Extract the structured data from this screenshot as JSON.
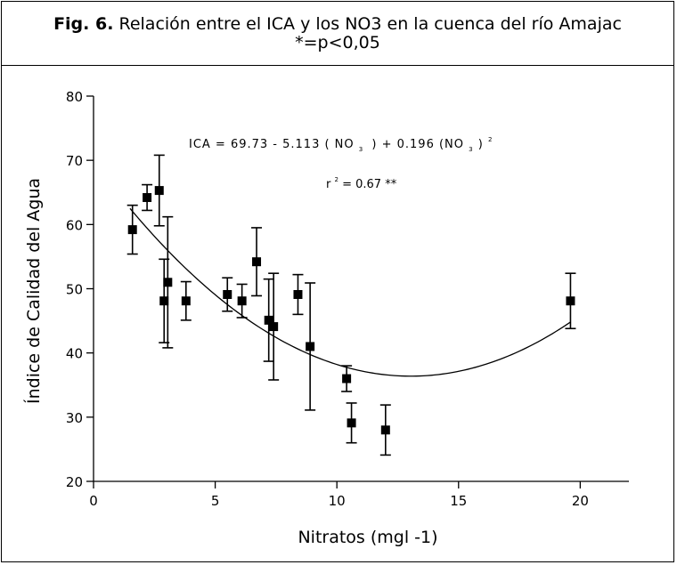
{
  "caption": {
    "fig_label": "Fig. 6.",
    "title": "Relación entre el ICA y los NO3 en la cuenca del río Amajac",
    "subtitle": "*=p<0,05"
  },
  "chart_data": {
    "type": "scatter",
    "xlabel": "Nitratos (mgl -1)",
    "ylabel": "Índice de Calidad del Agua",
    "xlim": [
      0,
      22
    ],
    "ylim": [
      20,
      80
    ],
    "x_ticks": [
      0,
      5,
      10,
      15,
      20
    ],
    "y_ticks": [
      20,
      30,
      40,
      50,
      60,
      70,
      80
    ],
    "grid": false,
    "points": [
      {
        "x": 1.6,
        "y": 59.2,
        "err": 3.8
      },
      {
        "x": 2.2,
        "y": 64.2,
        "err": 2.0
      },
      {
        "x": 2.7,
        "y": 65.3,
        "err": 5.5
      },
      {
        "x": 2.9,
        "y": 48.1,
        "err": 6.5
      },
      {
        "x": 3.05,
        "y": 51.0,
        "err": 10.2
      },
      {
        "x": 3.8,
        "y": 48.1,
        "err": 3.0
      },
      {
        "x": 5.5,
        "y": 49.1,
        "err": 2.6
      },
      {
        "x": 6.1,
        "y": 48.1,
        "err": 2.6
      },
      {
        "x": 6.7,
        "y": 54.2,
        "err": 5.3
      },
      {
        "x": 7.2,
        "y": 45.1,
        "err": 6.4
      },
      {
        "x": 7.4,
        "y": 44.1,
        "err": 8.3
      },
      {
        "x": 8.4,
        "y": 49.1,
        "err": 3.1
      },
      {
        "x": 8.9,
        "y": 41.0,
        "err": 9.9
      },
      {
        "x": 10.4,
        "y": 36.0,
        "err": 2.0
      },
      {
        "x": 10.6,
        "y": 29.1,
        "err": 3.1
      },
      {
        "x": 12.0,
        "y": 28.0,
        "err": 3.9
      },
      {
        "x": 19.6,
        "y": 48.1,
        "err": 4.3
      }
    ],
    "fit": {
      "a": 69.73,
      "b": 5.113,
      "c": 0.196,
      "x_range": [
        1.5,
        19.6
      ]
    },
    "annotations": {
      "equation_main": "ICA = 69.73 - 5.113 ( NO",
      "equation_sub1": "3",
      "equation_mid": ")  + 0.196 (NO",
      "equation_sub2": "3",
      "equation_end": ")",
      "equation_sup": "2",
      "r2_label": "r",
      "r2_sup": "2",
      "r2_value": " = 0.67 **"
    }
  }
}
